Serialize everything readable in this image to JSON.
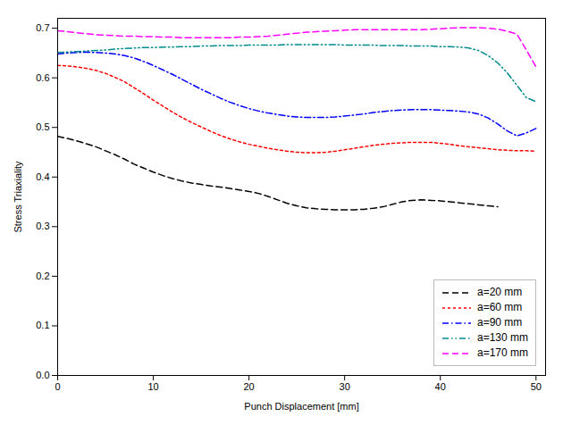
{
  "chart_data": {
    "type": "line",
    "xlabel": "Punch Displacement [mm]",
    "ylabel": "Stress Triaxiality",
    "xlim": [
      0,
      51
    ],
    "ylim": [
      0.0,
      0.72
    ],
    "xticks": [
      0,
      10,
      20,
      30,
      40,
      50
    ],
    "yticks": [
      {
        "value": 0.0,
        "label": "0.0"
      },
      0.1,
      0.2,
      0.3,
      0.4,
      0.5,
      0.6,
      0.7
    ],
    "grid": false,
    "legend": "lower right",
    "series": [
      {
        "name": "a=20 mm",
        "color": "#000000",
        "line_style": "dashed",
        "x": [
          0,
          1,
          2,
          3,
          4,
          5,
          6,
          7,
          8,
          9,
          10,
          11,
          12,
          13,
          14,
          15,
          16,
          17,
          18,
          19,
          20,
          21,
          22,
          23,
          24,
          25,
          26,
          27,
          28,
          29,
          30,
          31,
          32,
          33,
          34,
          35,
          36,
          37,
          38,
          39,
          40,
          41,
          42,
          43,
          44,
          45,
          46
        ],
        "values": [
          0.482,
          0.478,
          0.473,
          0.467,
          0.461,
          0.453,
          0.445,
          0.436,
          0.426,
          0.418,
          0.41,
          0.403,
          0.397,
          0.392,
          0.388,
          0.385,
          0.382,
          0.38,
          0.377,
          0.374,
          0.371,
          0.367,
          0.361,
          0.354,
          0.347,
          0.342,
          0.338,
          0.336,
          0.335,
          0.334,
          0.334,
          0.334,
          0.335,
          0.337,
          0.34,
          0.345,
          0.35,
          0.353,
          0.354,
          0.353,
          0.352,
          0.35,
          0.348,
          0.346,
          0.344,
          0.342,
          0.34
        ]
      },
      {
        "name": "a=60 mm",
        "color": "#ff0000",
        "line_style": "dotted",
        "x": [
          0,
          1,
          2,
          3,
          4,
          5,
          6,
          7,
          8,
          9,
          10,
          11,
          12,
          13,
          14,
          15,
          16,
          17,
          18,
          19,
          20,
          21,
          22,
          23,
          24,
          25,
          26,
          27,
          28,
          29,
          30,
          31,
          32,
          33,
          34,
          35,
          36,
          37,
          38,
          39,
          40,
          41,
          42,
          43,
          44,
          45,
          46,
          47,
          48,
          49,
          50
        ],
        "values": [
          0.625,
          0.624,
          0.622,
          0.619,
          0.615,
          0.609,
          0.601,
          0.592,
          0.58,
          0.568,
          0.555,
          0.543,
          0.531,
          0.52,
          0.51,
          0.501,
          0.492,
          0.484,
          0.477,
          0.471,
          0.466,
          0.462,
          0.458,
          0.455,
          0.452,
          0.45,
          0.449,
          0.449,
          0.45,
          0.452,
          0.455,
          0.458,
          0.461,
          0.464,
          0.466,
          0.468,
          0.469,
          0.47,
          0.47,
          0.47,
          0.468,
          0.466,
          0.463,
          0.461,
          0.459,
          0.457,
          0.455,
          0.454,
          0.453,
          0.453,
          0.452
        ]
      },
      {
        "name": "a=90 mm",
        "color": "#0000ff",
        "line_style": "dashdot",
        "x": [
          0,
          1,
          2,
          3,
          4,
          5,
          6,
          7,
          8,
          9,
          10,
          11,
          12,
          13,
          14,
          15,
          16,
          17,
          18,
          19,
          20,
          21,
          22,
          23,
          24,
          25,
          26,
          27,
          28,
          29,
          30,
          31,
          32,
          33,
          34,
          35,
          36,
          37,
          38,
          39,
          40,
          41,
          42,
          43,
          44,
          45,
          46,
          47,
          48,
          49,
          50
        ],
        "values": [
          0.648,
          0.65,
          0.651,
          0.652,
          0.651,
          0.65,
          0.648,
          0.645,
          0.64,
          0.633,
          0.625,
          0.616,
          0.607,
          0.597,
          0.587,
          0.577,
          0.568,
          0.559,
          0.551,
          0.544,
          0.538,
          0.533,
          0.529,
          0.526,
          0.523,
          0.521,
          0.52,
          0.52,
          0.52,
          0.521,
          0.523,
          0.525,
          0.527,
          0.53,
          0.532,
          0.534,
          0.535,
          0.536,
          0.536,
          0.536,
          0.535,
          0.534,
          0.533,
          0.531,
          0.527,
          0.519,
          0.507,
          0.493,
          0.483,
          0.489,
          0.498
        ]
      },
      {
        "name": "a=130 mm",
        "color": "#008B8B",
        "line_style": "dashdotdot",
        "x": [
          0,
          1,
          2,
          3,
          4,
          5,
          6,
          7,
          8,
          9,
          10,
          11,
          12,
          13,
          14,
          15,
          16,
          17,
          18,
          19,
          20,
          21,
          22,
          23,
          24,
          25,
          26,
          27,
          28,
          29,
          30,
          31,
          32,
          33,
          34,
          35,
          36,
          37,
          38,
          39,
          40,
          41,
          42,
          43,
          44,
          45,
          46,
          47,
          48,
          49,
          50
        ],
        "values": [
          0.651,
          0.652,
          0.653,
          0.654,
          0.655,
          0.656,
          0.658,
          0.659,
          0.66,
          0.661,
          0.661,
          0.662,
          0.662,
          0.663,
          0.663,
          0.664,
          0.664,
          0.665,
          0.665,
          0.665,
          0.666,
          0.666,
          0.666,
          0.666,
          0.667,
          0.667,
          0.667,
          0.667,
          0.667,
          0.667,
          0.666,
          0.666,
          0.666,
          0.666,
          0.665,
          0.665,
          0.665,
          0.664,
          0.664,
          0.664,
          0.663,
          0.663,
          0.662,
          0.66,
          0.655,
          0.645,
          0.63,
          0.61,
          0.585,
          0.56,
          0.552
        ]
      },
      {
        "name": "a=170 mm",
        "color": "#ff00ff",
        "line_style": "dashed",
        "x": [
          0,
          1,
          2,
          3,
          4,
          5,
          6,
          7,
          8,
          9,
          10,
          11,
          12,
          13,
          14,
          15,
          16,
          17,
          18,
          19,
          20,
          21,
          22,
          23,
          24,
          25,
          26,
          27,
          28,
          29,
          30,
          31,
          32,
          33,
          34,
          35,
          36,
          37,
          38,
          39,
          40,
          41,
          42,
          43,
          44,
          45,
          46,
          47,
          48,
          49,
          50
        ],
        "values": [
          0.695,
          0.693,
          0.691,
          0.689,
          0.687,
          0.686,
          0.685,
          0.684,
          0.684,
          0.683,
          0.683,
          0.682,
          0.682,
          0.681,
          0.681,
          0.681,
          0.681,
          0.681,
          0.681,
          0.682,
          0.682,
          0.683,
          0.684,
          0.686,
          0.688,
          0.69,
          0.692,
          0.693,
          0.694,
          0.695,
          0.696,
          0.697,
          0.697,
          0.697,
          0.697,
          0.697,
          0.697,
          0.697,
          0.697,
          0.698,
          0.699,
          0.7,
          0.701,
          0.701,
          0.701,
          0.7,
          0.698,
          0.694,
          0.688,
          0.656,
          0.622
        ]
      }
    ]
  }
}
